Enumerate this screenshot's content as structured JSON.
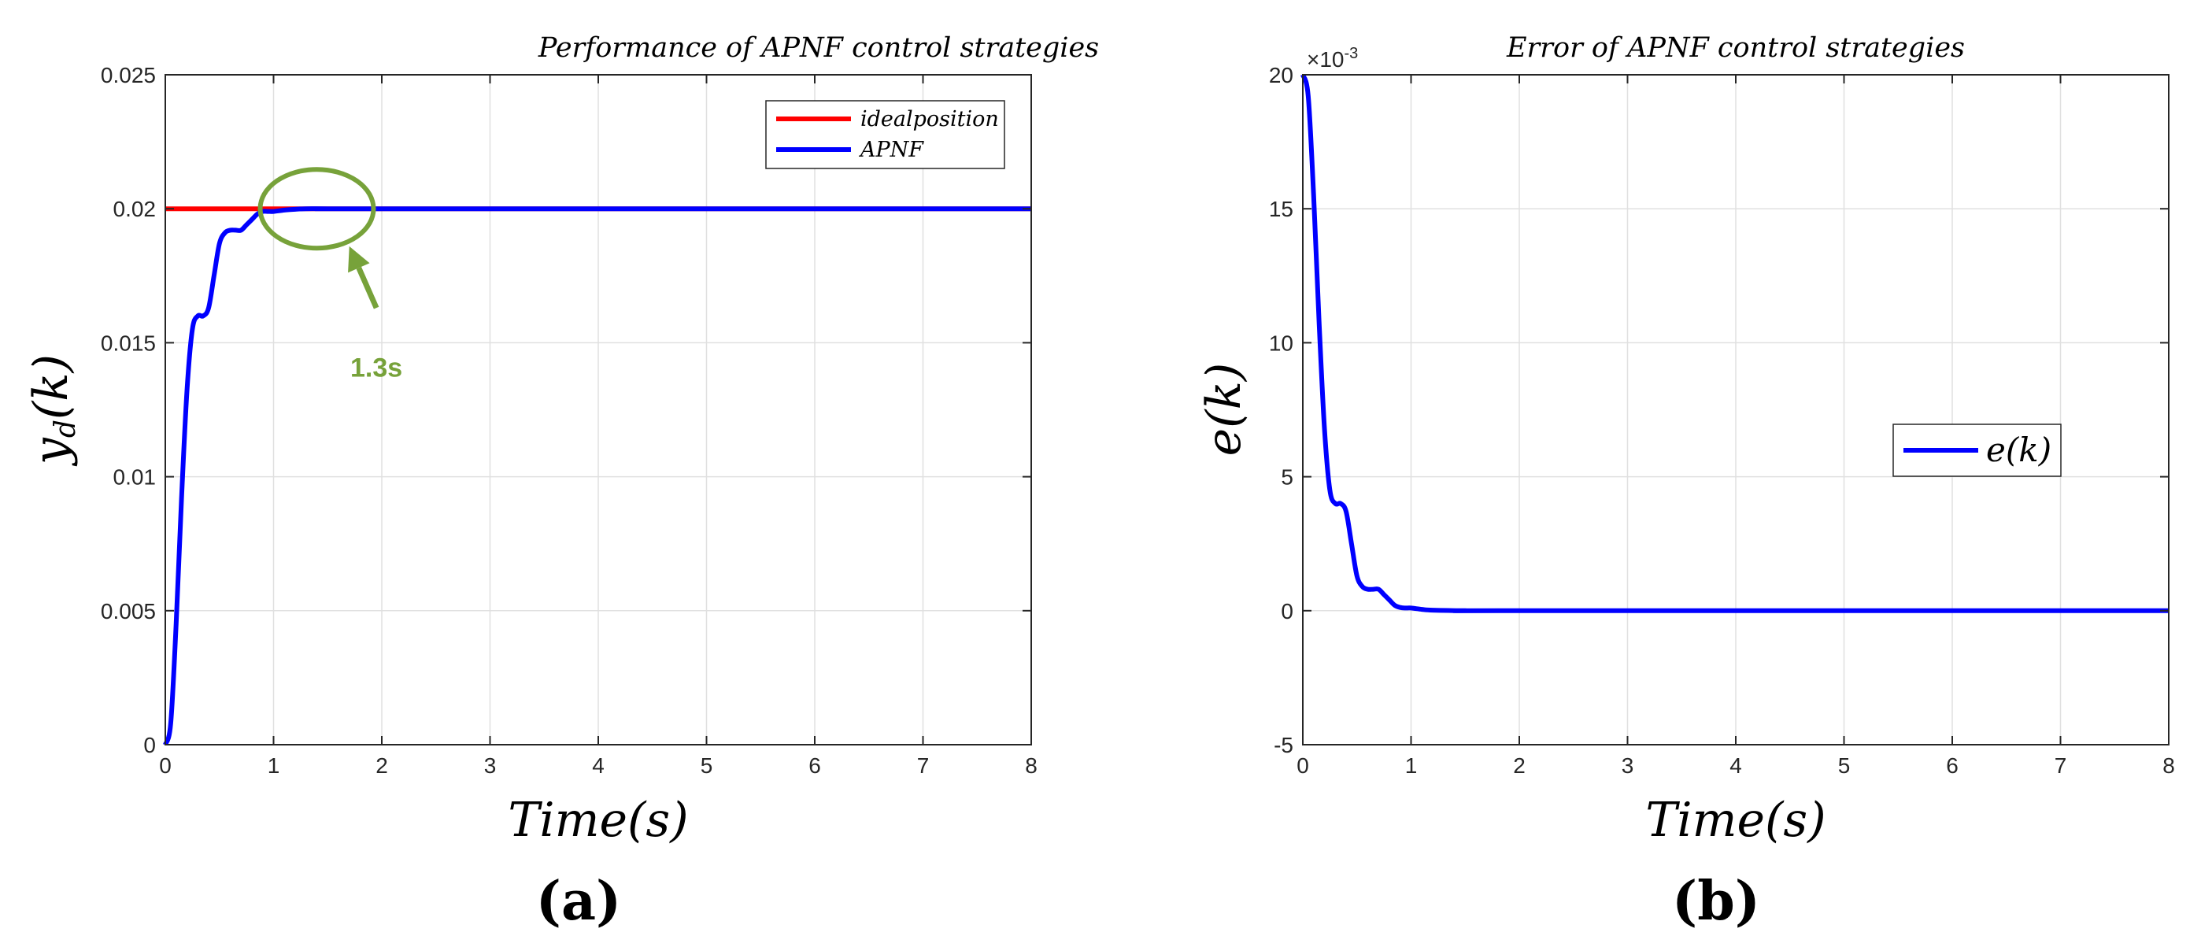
{
  "chart_data": [
    {
      "type": "line",
      "panel_label": "(a)",
      "title": "Performance of APNF control strategies",
      "xlabel": "Time(s)",
      "ylabel": "y_d(k)",
      "ylabel_main": "y",
      "ylabel_sub": "d",
      "ylabel_tail": "(k)",
      "xlim": [
        0,
        8
      ],
      "ylim": [
        0,
        0.025
      ],
      "xticks": [
        "0",
        "1",
        "2",
        "3",
        "4",
        "5",
        "6",
        "7",
        "8"
      ],
      "yticks": [
        "0",
        "0.005",
        "0.01",
        "0.015",
        "0.02",
        "0.025"
      ],
      "grid": true,
      "legend_position": "top-right",
      "series": [
        {
          "name": "idealposition",
          "color": "#ff0000",
          "x": [
            0,
            8
          ],
          "y": [
            0.02,
            0.02
          ]
        },
        {
          "name": "APNF",
          "color": "#0000ff",
          "x": [
            0,
            0.05,
            0.1,
            0.15,
            0.2,
            0.25,
            0.3,
            0.35,
            0.4,
            0.45,
            0.5,
            0.55,
            0.6,
            0.65,
            0.7,
            0.75,
            0.8,
            0.85,
            0.9,
            0.95,
            1.0,
            1.1,
            1.2,
            1.3,
            1.5,
            2.0,
            8.0
          ],
          "y": [
            0,
            0.0008,
            0.0045,
            0.0092,
            0.0132,
            0.0155,
            0.016,
            0.016,
            0.0163,
            0.0175,
            0.0187,
            0.0191,
            0.0192,
            0.0192,
            0.0192,
            0.0194,
            0.0196,
            0.0198,
            0.0199,
            0.0199,
            0.0199,
            0.01995,
            0.01998,
            0.02,
            0.02,
            0.02,
            0.02
          ]
        }
      ],
      "annotation": {
        "text": "1.3s",
        "color": "#77a23a",
        "circle_center": [
          1.4,
          0.02
        ],
        "arrow_tip": [
          1.7,
          0.0186
        ],
        "arrow_tail": [
          1.95,
          0.0163
        ],
        "text_pos": [
          2.0,
          0.0155
        ]
      }
    },
    {
      "type": "line",
      "panel_label": "(b)",
      "title": "Error of APNF control strategies",
      "xlabel": "Time(s)",
      "ylabel": "e(k)",
      "axis_multiplier": "×10",
      "axis_multiplier_exp": "-3",
      "xlim": [
        0,
        8
      ],
      "ylim": [
        -5,
        20
      ],
      "xticks": [
        "0",
        "1",
        "2",
        "3",
        "4",
        "5",
        "6",
        "7",
        "8"
      ],
      "yticks": [
        "-5",
        "0",
        "5",
        "10",
        "15",
        "20"
      ],
      "grid": true,
      "legend_position": "center-right",
      "series": [
        {
          "name": "e(k)",
          "color": "#0000ff",
          "x": [
            0,
            0.05,
            0.1,
            0.15,
            0.2,
            0.25,
            0.3,
            0.35,
            0.4,
            0.45,
            0.5,
            0.55,
            0.6,
            0.65,
            0.7,
            0.75,
            0.8,
            0.85,
            0.9,
            0.95,
            1.0,
            1.1,
            1.2,
            1.5,
            2.0,
            8.0
          ],
          "y": [
            20,
            19.2,
            15.5,
            10.8,
            6.8,
            4.5,
            4.0,
            4.0,
            3.7,
            2.5,
            1.3,
            0.9,
            0.8,
            0.8,
            0.8,
            0.6,
            0.4,
            0.2,
            0.12,
            0.1,
            0.1,
            0.05,
            0.02,
            0,
            0,
            0
          ]
        }
      ]
    }
  ],
  "colors": {
    "grid": "#e0e0e0",
    "axis": "#262626",
    "annotation": "#77a23a"
  }
}
